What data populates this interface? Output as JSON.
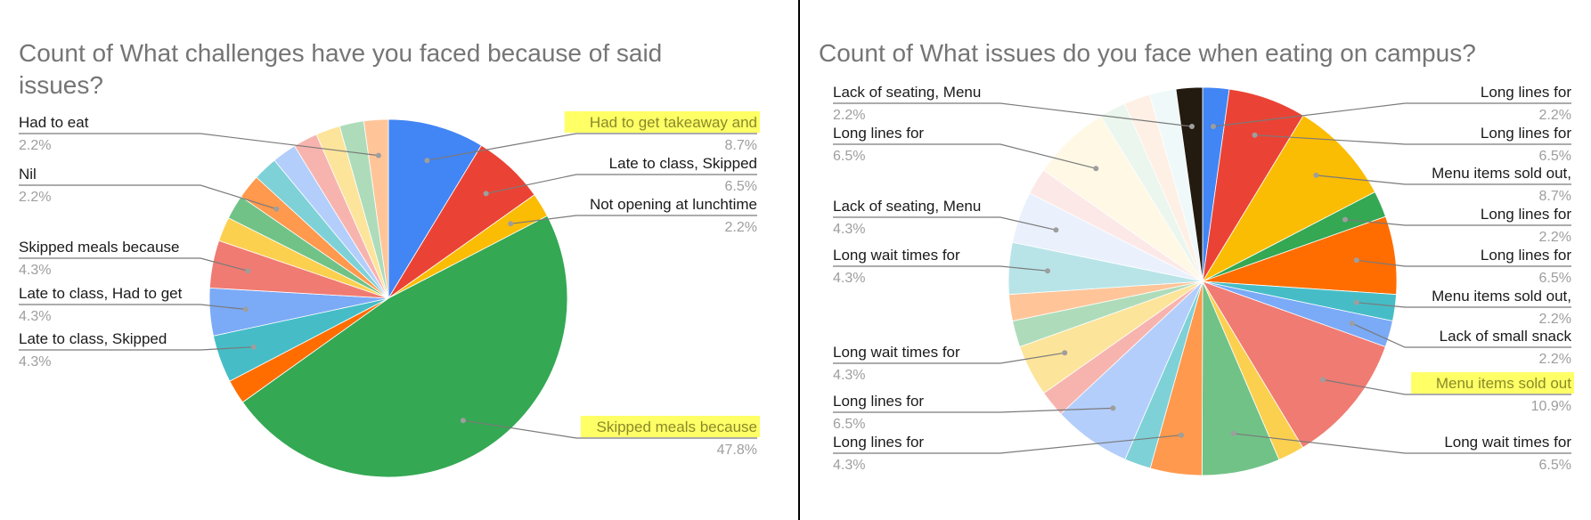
{
  "chart_data": [
    {
      "type": "pie",
      "title": "Count of What challenges have you faced because of said issues?",
      "slices": [
        {
          "label": "Had to get takeaway and",
          "value": 8.7,
          "color": "#4285F4",
          "highlight": true
        },
        {
          "label": "Late to class, Skipped",
          "value": 6.5,
          "color": "#EA4335"
        },
        {
          "label": "Not opening at lunchtime",
          "value": 2.2,
          "color": "#FBBC04"
        },
        {
          "label": "Skipped meals because",
          "value": 47.8,
          "color": "#34A853",
          "highlight": true
        },
        {
          "label": "",
          "value": 2.2,
          "color": "#FF6D01"
        },
        {
          "label": "Late to class, Skipped",
          "value": 4.3,
          "color": "#46BDC6"
        },
        {
          "label": "Late to class, Had to get",
          "value": 4.3,
          "color": "#7BAAF7"
        },
        {
          "label": "Skipped meals because",
          "value": 4.3,
          "color": "#F07B72"
        },
        {
          "label": "",
          "value": 2.2,
          "color": "#FCD04F"
        },
        {
          "label": "",
          "value": 2.2,
          "color": "#71C287"
        },
        {
          "label": "Nil",
          "value": 2.2,
          "color": "#FF994D"
        },
        {
          "label": "",
          "value": 2.2,
          "color": "#7ED1D7"
        },
        {
          "label": "",
          "value": 2.2,
          "color": "#B3CEFB"
        },
        {
          "label": "",
          "value": 2.2,
          "color": "#F7B4AE"
        },
        {
          "label": "",
          "value": 2.2,
          "color": "#FDE49B"
        },
        {
          "label": "",
          "value": 2.2,
          "color": "#AEDCBA"
        },
        {
          "label": "Had to eat",
          "value": 2.2,
          "color": "#FFC599"
        }
      ]
    },
    {
      "type": "pie",
      "title": "Count of What issues do you face when eating on campus?",
      "slices": [
        {
          "label": "Long lines for",
          "value": 2.2,
          "color": "#4285F4"
        },
        {
          "label": "Long lines for",
          "value": 6.5,
          "color": "#EA4335"
        },
        {
          "label": "Menu items sold out,",
          "value": 8.7,
          "color": "#FBBC04"
        },
        {
          "label": "Long lines for",
          "value": 2.2,
          "color": "#34A853"
        },
        {
          "label": "Long lines for",
          "value": 6.5,
          "color": "#FF6D01"
        },
        {
          "label": "Menu items sold out,",
          "value": 2.2,
          "color": "#46BDC6"
        },
        {
          "label": "Lack of small snack",
          "value": 2.2,
          "color": "#7BAAF7"
        },
        {
          "label": "Menu items sold out",
          "value": 10.9,
          "color": "#F07B72",
          "highlight": true
        },
        {
          "label": "",
          "value": 2.2,
          "color": "#FCD04F"
        },
        {
          "label": "Long wait times for",
          "value": 6.5,
          "color": "#71C287"
        },
        {
          "label": "Long lines for",
          "value": 4.3,
          "color": "#FF994D"
        },
        {
          "label": "",
          "value": 2.2,
          "color": "#7ED1D7"
        },
        {
          "label": "Long lines for",
          "value": 6.5,
          "color": "#B3CEFB"
        },
        {
          "label": "",
          "value": 2.2,
          "color": "#F7B4AE"
        },
        {
          "label": "Long wait times for",
          "value": 4.3,
          "color": "#FDE49B"
        },
        {
          "label": "",
          "value": 2.2,
          "color": "#AEDCBA"
        },
        {
          "label": "",
          "value": 2.2,
          "color": "#FFC599"
        },
        {
          "label": "Long wait times for",
          "value": 4.3,
          "color": "#B8E4E8"
        },
        {
          "label": "Lack of seating, Menu",
          "value": 4.3,
          "color": "#EAF1FD"
        },
        {
          "label": "",
          "value": 2.2,
          "color": "#FCE9E7"
        },
        {
          "label": "Long lines for",
          "value": 6.5,
          "color": "#FEF8E5"
        },
        {
          "label": "",
          "value": 2.2,
          "color": "#EAF6EE"
        },
        {
          "label": "",
          "value": 2.2,
          "color": "#FEF0E5"
        },
        {
          "label": "",
          "value": 2.2,
          "color": "#EFF9FA"
        },
        {
          "label": "Lack of seating, Menu",
          "value": 2.2,
          "color": "#231A10"
        }
      ]
    }
  ]
}
